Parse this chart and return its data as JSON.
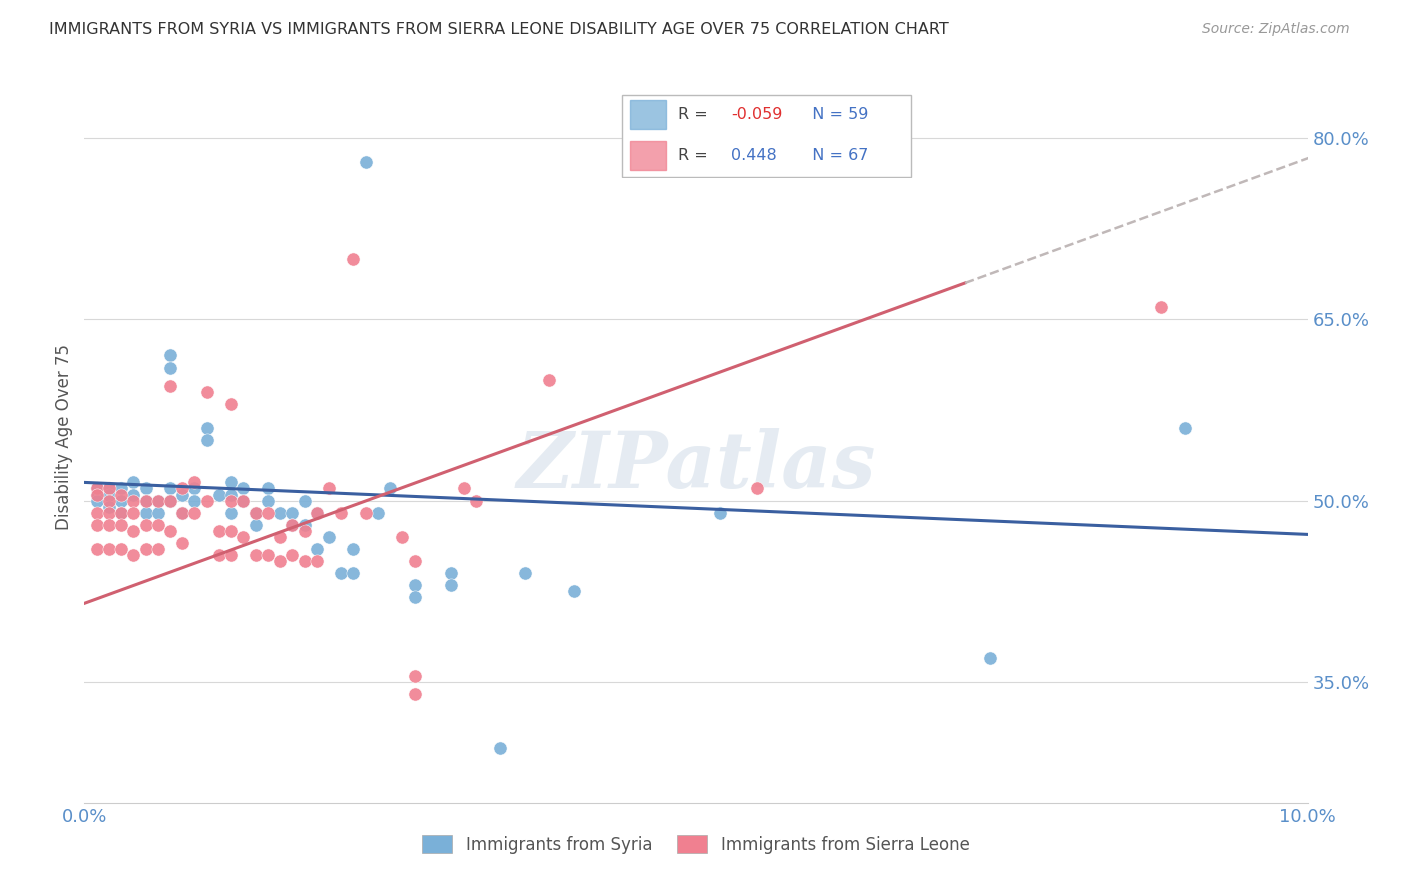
{
  "title": "IMMIGRANTS FROM SYRIA VS IMMIGRANTS FROM SIERRA LEONE DISABILITY AGE OVER 75 CORRELATION CHART",
  "source": "Source: ZipAtlas.com",
  "ylabel": "Disability Age Over 75",
  "ytick_labels": [
    "35.0%",
    "50.0%",
    "65.0%",
    "80.0%"
  ],
  "ytick_values": [
    0.35,
    0.5,
    0.65,
    0.8
  ],
  "xlim": [
    0.0,
    0.1
  ],
  "ylim": [
    0.25,
    0.855
  ],
  "syria_color": "#7ab0d8",
  "sierra_leone_color": "#f08090",
  "syria_line_color": "#3a5fa0",
  "sierra_leone_line_color": "#d06070",
  "dash_color": "#c0b8b8",
  "background_color": "#ffffff",
  "grid_color": "#d8d8d8",
  "title_color": "#333333",
  "axis_label_color": "#5a8fc9",
  "watermark_color": "#d0dce8",
  "watermark_alpha": 0.55,
  "syria_scatter": [
    [
      0.001,
      0.51
    ],
    [
      0.001,
      0.505
    ],
    [
      0.001,
      0.5
    ],
    [
      0.002,
      0.51
    ],
    [
      0.002,
      0.505
    ],
    [
      0.002,
      0.495
    ],
    [
      0.003,
      0.51
    ],
    [
      0.003,
      0.5
    ],
    [
      0.003,
      0.49
    ],
    [
      0.004,
      0.515
    ],
    [
      0.004,
      0.505
    ],
    [
      0.005,
      0.51
    ],
    [
      0.005,
      0.5
    ],
    [
      0.005,
      0.49
    ],
    [
      0.006,
      0.5
    ],
    [
      0.006,
      0.49
    ],
    [
      0.007,
      0.62
    ],
    [
      0.007,
      0.61
    ],
    [
      0.007,
      0.51
    ],
    [
      0.007,
      0.5
    ],
    [
      0.008,
      0.505
    ],
    [
      0.008,
      0.49
    ],
    [
      0.009,
      0.51
    ],
    [
      0.009,
      0.5
    ],
    [
      0.01,
      0.56
    ],
    [
      0.01,
      0.55
    ],
    [
      0.011,
      0.505
    ],
    [
      0.012,
      0.515
    ],
    [
      0.012,
      0.505
    ],
    [
      0.012,
      0.49
    ],
    [
      0.013,
      0.51
    ],
    [
      0.013,
      0.5
    ],
    [
      0.014,
      0.49
    ],
    [
      0.014,
      0.48
    ],
    [
      0.015,
      0.51
    ],
    [
      0.015,
      0.5
    ],
    [
      0.016,
      0.49
    ],
    [
      0.017,
      0.49
    ],
    [
      0.017,
      0.48
    ],
    [
      0.018,
      0.5
    ],
    [
      0.018,
      0.48
    ],
    [
      0.019,
      0.49
    ],
    [
      0.019,
      0.46
    ],
    [
      0.02,
      0.47
    ],
    [
      0.021,
      0.44
    ],
    [
      0.022,
      0.46
    ],
    [
      0.022,
      0.44
    ],
    [
      0.023,
      0.78
    ],
    [
      0.024,
      0.49
    ],
    [
      0.025,
      0.51
    ],
    [
      0.027,
      0.43
    ],
    [
      0.027,
      0.42
    ],
    [
      0.03,
      0.44
    ],
    [
      0.03,
      0.43
    ],
    [
      0.034,
      0.295
    ],
    [
      0.036,
      0.44
    ],
    [
      0.04,
      0.425
    ],
    [
      0.052,
      0.49
    ],
    [
      0.074,
      0.37
    ],
    [
      0.09,
      0.56
    ]
  ],
  "sierra_leone_scatter": [
    [
      0.001,
      0.51
    ],
    [
      0.001,
      0.505
    ],
    [
      0.001,
      0.49
    ],
    [
      0.001,
      0.48
    ],
    [
      0.001,
      0.46
    ],
    [
      0.002,
      0.51
    ],
    [
      0.002,
      0.5
    ],
    [
      0.002,
      0.49
    ],
    [
      0.002,
      0.48
    ],
    [
      0.002,
      0.46
    ],
    [
      0.003,
      0.505
    ],
    [
      0.003,
      0.49
    ],
    [
      0.003,
      0.48
    ],
    [
      0.003,
      0.46
    ],
    [
      0.004,
      0.5
    ],
    [
      0.004,
      0.49
    ],
    [
      0.004,
      0.475
    ],
    [
      0.004,
      0.455
    ],
    [
      0.005,
      0.5
    ],
    [
      0.005,
      0.48
    ],
    [
      0.005,
      0.46
    ],
    [
      0.006,
      0.5
    ],
    [
      0.006,
      0.48
    ],
    [
      0.006,
      0.46
    ],
    [
      0.007,
      0.595
    ],
    [
      0.007,
      0.5
    ],
    [
      0.007,
      0.475
    ],
    [
      0.008,
      0.51
    ],
    [
      0.008,
      0.49
    ],
    [
      0.008,
      0.465
    ],
    [
      0.009,
      0.515
    ],
    [
      0.009,
      0.49
    ],
    [
      0.01,
      0.59
    ],
    [
      0.01,
      0.5
    ],
    [
      0.011,
      0.475
    ],
    [
      0.011,
      0.455
    ],
    [
      0.012,
      0.58
    ],
    [
      0.012,
      0.5
    ],
    [
      0.012,
      0.475
    ],
    [
      0.012,
      0.455
    ],
    [
      0.013,
      0.5
    ],
    [
      0.013,
      0.47
    ],
    [
      0.014,
      0.49
    ],
    [
      0.014,
      0.455
    ],
    [
      0.015,
      0.49
    ],
    [
      0.015,
      0.455
    ],
    [
      0.016,
      0.47
    ],
    [
      0.016,
      0.45
    ],
    [
      0.017,
      0.48
    ],
    [
      0.017,
      0.455
    ],
    [
      0.018,
      0.475
    ],
    [
      0.018,
      0.45
    ],
    [
      0.019,
      0.49
    ],
    [
      0.019,
      0.45
    ],
    [
      0.02,
      0.51
    ],
    [
      0.021,
      0.49
    ],
    [
      0.022,
      0.7
    ],
    [
      0.023,
      0.49
    ],
    [
      0.026,
      0.47
    ],
    [
      0.027,
      0.45
    ],
    [
      0.027,
      0.355
    ],
    [
      0.027,
      0.34
    ],
    [
      0.031,
      0.51
    ],
    [
      0.032,
      0.5
    ],
    [
      0.038,
      0.6
    ],
    [
      0.055,
      0.51
    ],
    [
      0.088,
      0.66
    ]
  ]
}
